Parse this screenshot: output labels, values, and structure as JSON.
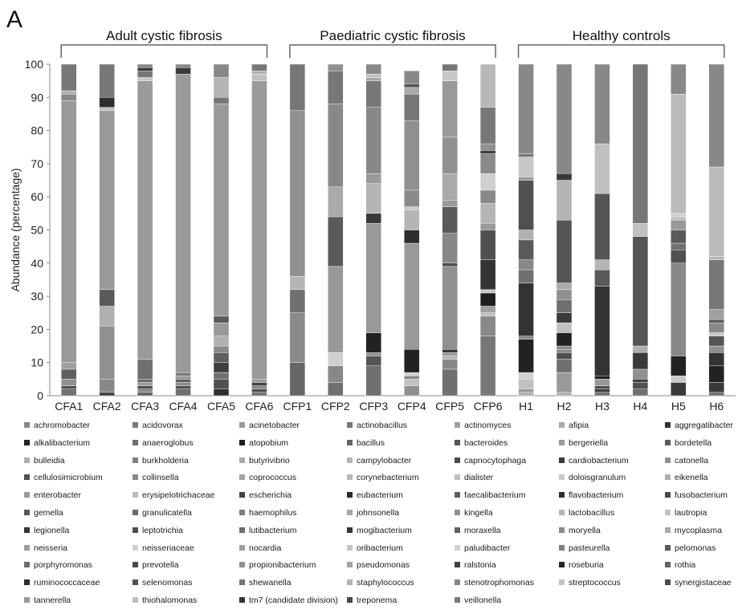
{
  "panel_label": "A",
  "chart_data": {
    "type": "bar",
    "stacked": true,
    "ylabel": "Abundance (percentage)",
    "ylim": [
      0,
      100
    ],
    "yticks": [
      0,
      10,
      20,
      30,
      40,
      50,
      60,
      70,
      80,
      90,
      100
    ],
    "grid": false,
    "legend_placement": "bottom",
    "groups": [
      {
        "label": "Adult cystic fibrosis",
        "categories": [
          "CFA1",
          "CFA2",
          "CFA3",
          "CFA4",
          "CFA5",
          "CFA6"
        ]
      },
      {
        "label": "Paediatric cystic fibrosis",
        "categories": [
          "CFP1",
          "CFP2",
          "CFP3",
          "CFP4",
          "CFP5",
          "CFP6"
        ]
      },
      {
        "label": "Healthy controls",
        "categories": [
          "H1",
          "H2",
          "H3",
          "H4",
          "H5",
          "H6"
        ]
      }
    ],
    "categories": [
      "CFA1",
      "CFA2",
      "CFA3",
      "CFA4",
      "CFA5",
      "CFA6",
      "CFP1",
      "CFP2",
      "CFP3",
      "CFP4",
      "CFP5",
      "CFP6",
      "H1",
      "H2",
      "H3",
      "H4",
      "H5",
      "H6"
    ],
    "samples": {
      "CFA1": [
        [
          "#707070",
          2
        ],
        [
          "#505050",
          1
        ],
        [
          "#909090",
          2
        ],
        [
          "#606060",
          3
        ],
        [
          "#a0a0a0",
          2
        ],
        [
          "#999999",
          79
        ],
        [
          "#888888",
          2
        ],
        [
          "#b0b0b0",
          1
        ],
        [
          "#777777",
          8
        ]
      ],
      "CFA2": [
        [
          "#404040",
          1
        ],
        [
          "#888888",
          4
        ],
        [
          "#909090",
          16
        ],
        [
          "#b0b0b0",
          6
        ],
        [
          "#5a5a5a",
          5
        ],
        [
          "#999999",
          54
        ],
        [
          "#c0c0c0",
          1
        ],
        [
          "#2e2e2e",
          3
        ],
        [
          "#777777",
          10
        ]
      ],
      "CFA3": [
        [
          "#606060",
          1
        ],
        [
          "#8a8a8a",
          1
        ],
        [
          "#505050",
          1
        ],
        [
          "#999999",
          1
        ],
        [
          "#6a6a6a",
          1
        ],
        [
          "#707070",
          6
        ],
        [
          "#9a9a9a",
          84
        ],
        [
          "#c8c8c8",
          1
        ],
        [
          "#777777",
          2
        ],
        [
          "#3a3a3a",
          1
        ],
        [
          "#888888",
          1
        ]
      ],
      "CFA4": [
        [
          "#707070",
          2
        ],
        [
          "#505050",
          1
        ],
        [
          "#8a8a8a",
          1
        ],
        [
          "#606060",
          1
        ],
        [
          "#999999",
          1
        ],
        [
          "#7a7a7a",
          1
        ],
        [
          "#9a9a9a",
          90
        ],
        [
          "#3a3a3a",
          2
        ],
        [
          "#888888",
          1
        ]
      ],
      "CFA5": [
        [
          "#303030",
          2
        ],
        [
          "#505050",
          3
        ],
        [
          "#707070",
          2
        ],
        [
          "#404040",
          3
        ],
        [
          "#606060",
          3
        ],
        [
          "#8a8a8a",
          2
        ],
        [
          "#b0b0b0",
          3
        ],
        [
          "#999999",
          4
        ],
        [
          "#5a5a5a",
          2
        ],
        [
          "#9a9a9a",
          64
        ],
        [
          "#777777",
          2
        ],
        [
          "#b5b5b5",
          6
        ],
        [
          "#888888",
          4
        ]
      ],
      "CFA6": [
        [
          "#707070",
          1
        ],
        [
          "#505050",
          1
        ],
        [
          "#888888",
          1
        ],
        [
          "#404040",
          1
        ],
        [
          "#999999",
          1
        ],
        [
          "#9a9a9a",
          90
        ],
        [
          "#c0c0c0",
          2
        ],
        [
          "#b0b0b0",
          1
        ],
        [
          "#777777",
          2
        ]
      ],
      "CFP1": [
        [
          "#666666",
          10
        ],
        [
          "#8a8a8a",
          15
        ],
        [
          "#707070",
          7
        ],
        [
          "#b5b5b5",
          4
        ],
        [
          "#909090",
          50
        ],
        [
          "#777777",
          14
        ]
      ],
      "CFP2": [
        [
          "#707070",
          4
        ],
        [
          "#888888",
          5
        ],
        [
          "#d0d0d0",
          4
        ],
        [
          "#999999",
          26
        ],
        [
          "#5a5a5a",
          15
        ],
        [
          "#aaaaaa",
          9
        ],
        [
          "#888888",
          25
        ],
        [
          "#777777",
          10
        ],
        [
          "#909090",
          2
        ]
      ],
      "CFP3": [
        [
          "#707070",
          9
        ],
        [
          "#555555",
          3
        ],
        [
          "#909090",
          1
        ],
        [
          "#222222",
          6
        ],
        [
          "#999999",
          33
        ],
        [
          "#3a3a3a",
          3
        ],
        [
          "#b5b5b5",
          9
        ],
        [
          "#9a9a9a",
          3
        ],
        [
          "#888888",
          20
        ],
        [
          "#777777",
          8
        ],
        [
          "#a8a8a8",
          1
        ],
        [
          "#c0c0c0",
          1
        ],
        [
          "#888888",
          3
        ]
      ],
      "CFP4": [
        [
          "#909090",
          3
        ],
        [
          "#c0c0c0",
          2
        ],
        [
          "#888888",
          1
        ],
        [
          "#d0d0d0",
          1
        ],
        [
          "#222222",
          7
        ],
        [
          "#999999",
          32
        ],
        [
          "#2e2e2e",
          4
        ],
        [
          "#b5b5b5",
          6
        ],
        [
          "#c8c8c8",
          1
        ],
        [
          "#8a8a8a",
          5
        ],
        [
          "#909090",
          21
        ],
        [
          "#777777",
          8
        ],
        [
          "#aaaaaa",
          2
        ],
        [
          "#555555",
          1
        ],
        [
          "#888888",
          4
        ]
      ],
      "CFP5": [
        [
          "#707070",
          8
        ],
        [
          "#888888",
          3
        ],
        [
          "#b5b5b5",
          1
        ],
        [
          "#999999",
          1
        ],
        [
          "#3a3a3a",
          1
        ],
        [
          "#909090",
          25
        ],
        [
          "#505050",
          1
        ],
        [
          "#888888",
          9
        ],
        [
          "#5a5a5a",
          8
        ],
        [
          "#9a9a9a",
          2
        ],
        [
          "#aaaaaa",
          8
        ],
        [
          "#909090",
          11
        ],
        [
          "#999999",
          17
        ],
        [
          "#c8c8c8",
          3
        ],
        [
          "#777777",
          2
        ]
      ],
      "CFP6": [
        [
          "#777777",
          18
        ],
        [
          "#888888",
          6
        ],
        [
          "#c0c0c0",
          1
        ],
        [
          "#a0a0a0",
          2
        ],
        [
          "#1e1e1e",
          4
        ],
        [
          "#c8c8c8",
          1
        ],
        [
          "#333333",
          9
        ],
        [
          "#505050",
          9
        ],
        [
          "#999999",
          2
        ],
        [
          "#b5b5b5",
          6
        ],
        [
          "#888888",
          4
        ],
        [
          "#d0d0d0",
          5
        ],
        [
          "#8a8a8a",
          6
        ],
        [
          "#3a3a3a",
          1
        ],
        [
          "#909090",
          2
        ],
        [
          "#777777",
          11
        ],
        [
          "#b8b8b8",
          13
        ]
      ],
      "H1": [
        [
          "#b0b0b0",
          1
        ],
        [
          "#999999",
          1
        ],
        [
          "#c0c0c0",
          3
        ],
        [
          "#d0d0d0",
          2
        ],
        [
          "#222222",
          10
        ],
        [
          "#8a8a8a",
          1
        ],
        [
          "#333333",
          16
        ],
        [
          "#707070",
          4
        ],
        [
          "#888888",
          3
        ],
        [
          "#5a5a5a",
          6
        ],
        [
          "#b0b0b0",
          3
        ],
        [
          "#505050",
          15
        ],
        [
          "#999999",
          1
        ],
        [
          "#c8c8c8",
          6
        ],
        [
          "#777777",
          1
        ],
        [
          "#888888",
          27
        ]
      ],
      "H2": [
        [
          "#b0b0b0",
          1
        ],
        [
          "#999999",
          6
        ],
        [
          "#707070",
          4
        ],
        [
          "#505050",
          2
        ],
        [
          "#8a8a8a",
          1
        ],
        [
          "#888888",
          1
        ],
        [
          "#222222",
          4
        ],
        [
          "#c0c0c0",
          3
        ],
        [
          "#3a3a3a",
          3
        ],
        [
          "#707070",
          4
        ],
        [
          "#909090",
          3
        ],
        [
          "#aaaaaa",
          2
        ],
        [
          "#555555",
          19
        ],
        [
          "#b5b5b5",
          12
        ],
        [
          "#3a3a3a",
          2
        ],
        [
          "#888888",
          33
        ]
      ],
      "H3": [
        [
          "#707070",
          1
        ],
        [
          "#404040",
          1
        ],
        [
          "#505050",
          1
        ],
        [
          "#999999",
          2
        ],
        [
          "#222222",
          1
        ],
        [
          "#333333",
          27
        ],
        [
          "#5a5a5a",
          5
        ],
        [
          "#b5b5b5",
          3
        ],
        [
          "#555555",
          20
        ],
        [
          "#c0c0c0",
          15
        ],
        [
          "#888888",
          24
        ]
      ],
      "H4": [
        [
          "#707070",
          2
        ],
        [
          "#505050",
          2
        ],
        [
          "#404040",
          1
        ],
        [
          "#909090",
          3
        ],
        [
          "#3a3a3a",
          5
        ],
        [
          "#b0b0b0",
          2
        ],
        [
          "#555555",
          33
        ],
        [
          "#c0c0c0",
          4
        ],
        [
          "#777777",
          48
        ]
      ],
      "H5": [
        [
          "#3a3a3a",
          4
        ],
        [
          "#c8c8c8",
          2
        ],
        [
          "#222222",
          6
        ],
        [
          "#888888",
          28
        ],
        [
          "#505050",
          4
        ],
        [
          "#707070",
          2
        ],
        [
          "#5a5a5a",
          4
        ],
        [
          "#999999",
          3
        ],
        [
          "#c0c0c0",
          1
        ],
        [
          "#d0d0d0",
          1
        ],
        [
          "#bbbbbb",
          36
        ],
        [
          "#888888",
          9
        ]
      ],
      "H6": [
        [
          "#707070",
          1
        ],
        [
          "#3a3a3a",
          3
        ],
        [
          "#222222",
          5
        ],
        [
          "#333333",
          4
        ],
        [
          "#909090",
          2
        ],
        [
          "#555555",
          3
        ],
        [
          "#c8c8c8",
          1
        ],
        [
          "#888888",
          3
        ],
        [
          "#5a5a5a",
          1
        ],
        [
          "#a0a0a0",
          3
        ],
        [
          "#777777",
          15
        ],
        [
          "#b5b5b5",
          1
        ],
        [
          "#bbbbbb",
          27
        ],
        [
          "#888888",
          31
        ]
      ]
    },
    "legend": [
      [
        "achromobacter",
        "#888888"
      ],
      [
        "acidovorax",
        "#7a7a7a"
      ],
      [
        "acinetobacter",
        "#9a9a9a"
      ],
      [
        "actinobacillus",
        "#777777"
      ],
      [
        "actinomyces",
        "#a0a0a0"
      ],
      [
        "afipia",
        "#aaaaaa"
      ],
      [
        "aggregatibacter",
        "#333333"
      ],
      [
        "alkalibacterium",
        "#222222"
      ],
      [
        "anaeroglobus",
        "#707070"
      ],
      [
        "atopobium",
        "#1e1e1e"
      ],
      [
        "bacillus",
        "#666666"
      ],
      [
        "bacteroides",
        "#555555"
      ],
      [
        "bergeriella",
        "#999999"
      ],
      [
        "bordetella",
        "#5a5a5a"
      ],
      [
        "bulleidia",
        "#b0b0b0"
      ],
      [
        "burkholderia",
        "#808080"
      ],
      [
        "butyrivibrio",
        "#a8a8a8"
      ],
      [
        "campylobacter",
        "#b5b5b5"
      ],
      [
        "capnocytophaga",
        "#4a4a4a"
      ],
      [
        "cardiobacterium",
        "#3a3a3a"
      ],
      [
        "catonella",
        "#909090"
      ],
      [
        "cellulosimicrobium",
        "#505050"
      ],
      [
        "collinsella",
        "#8a8a8a"
      ],
      [
        "coprococcus",
        "#a5a5a5"
      ],
      [
        "corynebacterium",
        "#b8b8b8"
      ],
      [
        "dialister",
        "#c0c0c0"
      ],
      [
        "doloisgranulum",
        "#c8c8c8"
      ],
      [
        "eikenella",
        "#b0b0b0"
      ],
      [
        "enterobacter",
        "#999999"
      ],
      [
        "erysipelotrichaceae",
        "#bbbbbb"
      ],
      [
        "escherichia",
        "#444444"
      ],
      [
        "eubacterium",
        "#2a2a2a"
      ],
      [
        "faecalibacterium",
        "#606060"
      ],
      [
        "flavobacterium",
        "#2e2e2e"
      ],
      [
        "fusobacterium",
        "#4a4a4a"
      ],
      [
        "gemella",
        "#585858"
      ],
      [
        "granulicatella",
        "#6a6a6a"
      ],
      [
        "haemophilus",
        "#7d7d7d"
      ],
      [
        "johnsonella",
        "#a8a8a8"
      ],
      [
        "kingella",
        "#8e8e8e"
      ],
      [
        "lactobacillus",
        "#b5b5b5"
      ],
      [
        "lautropia",
        "#c0c0c0"
      ],
      [
        "legionella",
        "#333333"
      ],
      [
        "leptotrichia",
        "#4f4f4f"
      ],
      [
        "lutibacterium",
        "#6e6e6e"
      ],
      [
        "mogibacterium",
        "#383838"
      ],
      [
        "moraxella",
        "#626262"
      ],
      [
        "moryella",
        "#8c8c8c"
      ],
      [
        "mycoplasma",
        "#a8a8a8"
      ],
      [
        "neisseria",
        "#9e9e9e"
      ],
      [
        "neisseriaceae",
        "#d0d0d0"
      ],
      [
        "nocardia",
        "#a0a0a0"
      ],
      [
        "oribacterium",
        "#c5c5c5"
      ],
      [
        "paludibacter",
        "#d2d2d2"
      ],
      [
        "pasteurella",
        "#7f7f7f"
      ],
      [
        "pelomonas",
        "#595959"
      ],
      [
        "porphyromonas",
        "#6c6c6c"
      ],
      [
        "prevotella",
        "#4d4d4d"
      ],
      [
        "propionibacterium",
        "#919191"
      ],
      [
        "pseudomonas",
        "#a3a3a3"
      ],
      [
        "ralstonia",
        "#3f3f3f"
      ],
      [
        "roseburia",
        "#262626"
      ],
      [
        "rothia",
        "#646464"
      ],
      [
        "ruminococcaceae",
        "#2b2b2b"
      ],
      [
        "selenomonas",
        "#535353"
      ],
      [
        "shewanella",
        "#747474"
      ],
      [
        "staphylococcus",
        "#b3b3b3"
      ],
      [
        "stenotrophomonas",
        "#858585"
      ],
      [
        "streptococcus",
        "#c2c2c2"
      ],
      [
        "synergistaceae",
        "#4b4b4b"
      ],
      [
        "tannerella",
        "#9b9b9b"
      ],
      [
        "thiohalomonas",
        "#bdbdbd"
      ],
      [
        "tm7 (candidate division)",
        "#363636"
      ],
      [
        "treponema",
        "#474747"
      ],
      [
        "veillonella",
        "#7b7b7b"
      ]
    ]
  }
}
